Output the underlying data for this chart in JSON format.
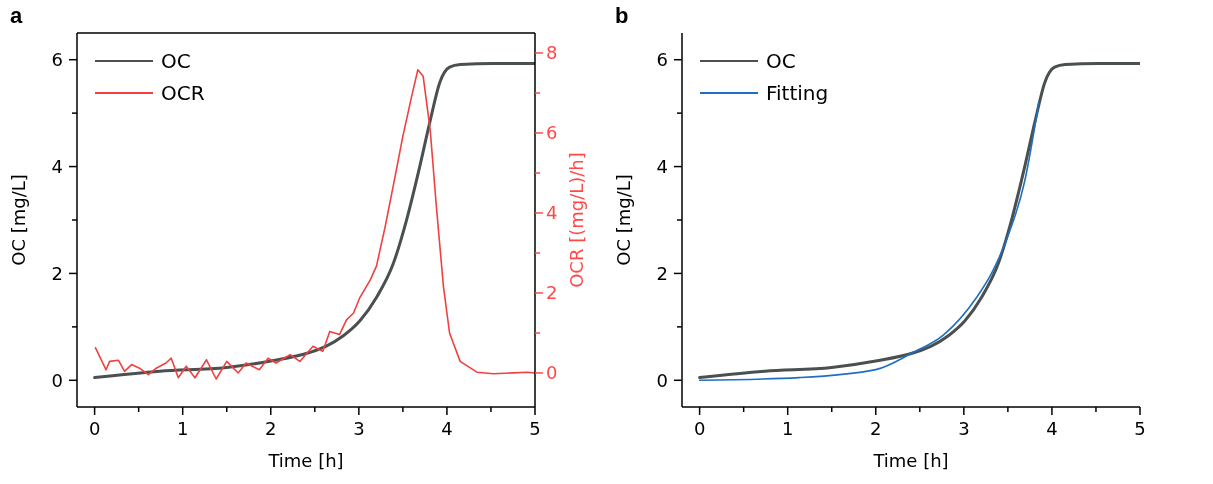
{
  "chart_data": [
    {
      "type": "line",
      "title": "a",
      "xlabel": "Time [h]",
      "ylabel": "OC [mg/L]",
      "y2label": "OCR [(mg/L)/h]",
      "legend": "top left",
      "xlim": [
        -0.2,
        5
      ],
      "xticks": [
        0,
        {
          "value": 0.5,
          "label": null
        },
        1,
        {
          "value": 1.5,
          "label": null
        },
        2,
        {
          "value": 2.5,
          "label": null
        },
        3,
        {
          "value": 3.5,
          "label": null
        },
        4,
        {
          "value": 4.5,
          "label": null
        },
        5
      ],
      "ylim": [
        -0.5,
        6.5
      ],
      "yticks": [
        0,
        {
          "value": 1,
          "label": null
        },
        2,
        {
          "value": 3,
          "label": null
        },
        4,
        {
          "value": 5,
          "label": null
        },
        6
      ],
      "y2lim": [
        -0.85,
        8.5
      ],
      "y2ticks": [
        0,
        {
          "value": 1,
          "label": null
        },
        2,
        {
          "value": 3,
          "label": null
        },
        4,
        {
          "value": 5,
          "label": null
        },
        6,
        {
          "value": 7,
          "label": null
        },
        8
      ],
      "series": [
        {
          "name": "OC",
          "color": "#4a5050",
          "x": [
            0,
            0.74,
            1.5,
            2,
            2.44,
            2.63,
            2.82,
            3.01,
            3.2,
            3.39,
            3.54,
            3.69,
            3.81,
            3.92,
            4.03,
            4.15,
            4.53,
            5
          ],
          "values": [
            0.05,
            0.17,
            0.24,
            0.36,
            0.52,
            0.64,
            0.83,
            1.11,
            1.55,
            2.18,
            2.99,
            3.99,
            4.86,
            5.58,
            5.86,
            5.91,
            5.93,
            5.93
          ]
        },
        {
          "name": "OCR",
          "color": "#f04040",
          "axis": "y2",
          "x": [
            0.01,
            0.13,
            0.17,
            0.27,
            0.34,
            0.42,
            0.51,
            0.61,
            0.7,
            0.81,
            0.87,
            0.95,
            1.04,
            1.14,
            1.27,
            1.38,
            1.5,
            1.63,
            1.72,
            1.87,
            1.97,
            2.06,
            2.22,
            2.33,
            2.48,
            2.59,
            2.67,
            2.78,
            2.86,
            2.94,
            3.01,
            3.13,
            3.2,
            3.3,
            3.39,
            3.5,
            3.6,
            3.67,
            3.73,
            3.81,
            3.88,
            3.96,
            4.03,
            4.15,
            4.34,
            4.53,
            4.91,
            5
          ],
          "values": [
            0.63,
            0.08,
            0.29,
            0.32,
            0.04,
            0.21,
            0.12,
            -0.04,
            0.12,
            0.25,
            0.37,
            -0.12,
            0.17,
            -0.12,
            0.33,
            -0.15,
            0.29,
            0,
            0.25,
            0.08,
            0.37,
            0.25,
            0.46,
            0.29,
            0.67,
            0.54,
            1.04,
            0.96,
            1.33,
            1.5,
            1.88,
            2.33,
            2.67,
            3.67,
            4.67,
            5.92,
            6.92,
            7.58,
            7.42,
            6.08,
            4.17,
            2.17,
            1,
            0.29,
            0.02,
            -0.02,
            0.02,
            0
          ]
        }
      ]
    },
    {
      "type": "line",
      "title": "b",
      "xlabel": "Time [h]",
      "ylabel": "OC [mg/L]",
      "legend": "top left",
      "xlim": [
        -0.2,
        5
      ],
      "xticks": [
        0,
        {
          "value": 0.5,
          "label": null
        },
        1,
        {
          "value": 1.5,
          "label": null
        },
        2,
        {
          "value": 2.5,
          "label": null
        },
        3,
        {
          "value": 3.5,
          "label": null
        },
        4,
        {
          "value": 4.5,
          "label": null
        },
        5
      ],
      "ylim": [
        -0.5,
        6.5
      ],
      "yticks": [
        0,
        {
          "value": 1,
          "label": null
        },
        2,
        {
          "value": 3,
          "label": null
        },
        4,
        {
          "value": 5,
          "label": null
        },
        6
      ],
      "series": [
        {
          "name": "OC",
          "color": "#4a5050",
          "x": [
            0,
            0.74,
            1.5,
            2,
            2.44,
            2.63,
            2.82,
            3.01,
            3.2,
            3.39,
            3.54,
            3.69,
            3.81,
            3.92,
            4.03,
            4.15,
            4.53,
            5
          ],
          "values": [
            0.05,
            0.17,
            0.24,
            0.36,
            0.52,
            0.64,
            0.83,
            1.11,
            1.55,
            2.18,
            2.99,
            3.99,
            4.86,
            5.58,
            5.86,
            5.91,
            5.93,
            5.93
          ]
        },
        {
          "name": "Fitting",
          "color": "#1f6fc0",
          "x": [
            0,
            1.13,
            2,
            2.41,
            2.77,
            3.14,
            3.32,
            3.5,
            3.69,
            3.85
          ],
          "values": [
            0,
            0.05,
            0.2,
            0.51,
            0.85,
            1.54,
            2.02,
            2.7,
            3.72,
            5.19
          ]
        }
      ]
    }
  ]
}
